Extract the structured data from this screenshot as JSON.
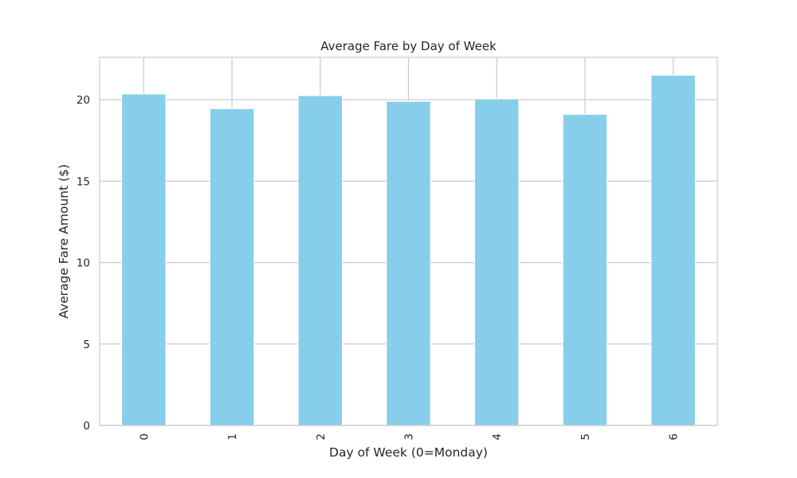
{
  "chart_data": {
    "type": "bar",
    "title": "Average Fare by Day of Week",
    "xlabel": "Day of Week (0=Monday)",
    "ylabel": "Average Fare Amount ($)",
    "categories": [
      "0",
      "1",
      "2",
      "3",
      "4",
      "5",
      "6"
    ],
    "values": [
      20.35,
      19.45,
      20.25,
      19.9,
      20.05,
      19.1,
      21.5
    ],
    "ylim": [
      0,
      22.6
    ],
    "yticks": [
      0,
      5,
      10,
      15,
      20
    ],
    "grid": true,
    "bar_color": "#87ceeb",
    "grid_color": "#cccccc",
    "spine_color": "#cccccc"
  }
}
